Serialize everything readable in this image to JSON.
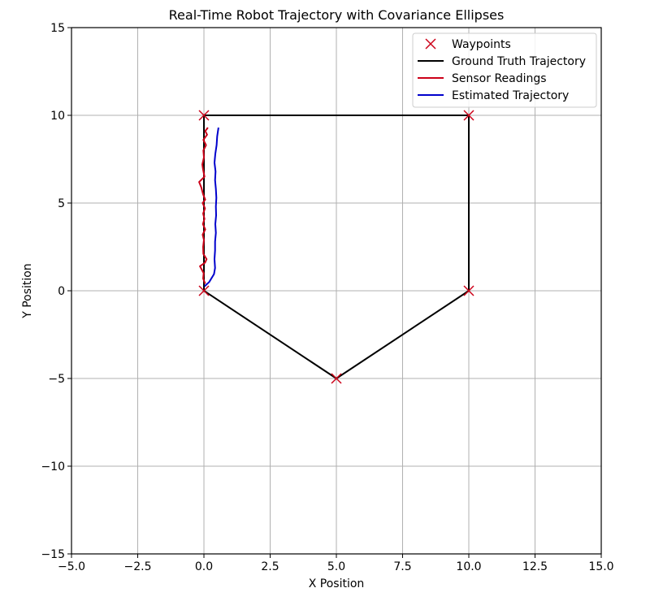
{
  "chart_data": {
    "type": "line",
    "title": "Real-Time Robot Trajectory with Covariance Ellipses",
    "xlabel": "X Position",
    "ylabel": "Y Position",
    "xlim": [
      -5.0,
      15.0
    ],
    "ylim": [
      -15,
      15
    ],
    "xticks": [
      -5.0,
      -2.5,
      0.0,
      2.5,
      5.0,
      7.5,
      10.0,
      12.5,
      15.0
    ],
    "xtick_labels": [
      "−5.0",
      "−2.5",
      "0.0",
      "2.5",
      "5.0",
      "7.5",
      "10.0",
      "12.5",
      "15.0"
    ],
    "yticks": [
      -15,
      -10,
      -5,
      0,
      5,
      10,
      15
    ],
    "ytick_labels": [
      "−15",
      "−10",
      "−5",
      "0",
      "5",
      "10",
      "15"
    ],
    "grid": true,
    "legend_position": "top-right",
    "series": [
      {
        "name": "Waypoints",
        "kind": "markers",
        "marker": "x",
        "color": "#cc0018",
        "points": [
          [
            0,
            0
          ],
          [
            0,
            10
          ],
          [
            10,
            10
          ],
          [
            10,
            0
          ],
          [
            5,
            -5
          ]
        ]
      },
      {
        "name": "Ground Truth Trajectory",
        "kind": "line",
        "color": "#000000",
        "points": [
          [
            0,
            0
          ],
          [
            0,
            10
          ],
          [
            10,
            10
          ],
          [
            10,
            0
          ],
          [
            5,
            -5
          ],
          [
            0,
            0
          ]
        ]
      },
      {
        "name": "Sensor Readings",
        "kind": "line",
        "color": "#cc0018",
        "points": [
          [
            0.05,
            0.4
          ],
          [
            -0.03,
            0.7
          ],
          [
            -0.01,
            1.0
          ],
          [
            -0.15,
            1.4
          ],
          [
            0.04,
            1.6
          ],
          [
            0.1,
            1.8
          ],
          [
            -0.02,
            2.1
          ],
          [
            -0.03,
            2.5
          ],
          [
            0.0,
            2.9
          ],
          [
            -0.05,
            3.2
          ],
          [
            0.05,
            3.5
          ],
          [
            -0.04,
            3.8
          ],
          [
            0.02,
            4.1
          ],
          [
            -0.03,
            4.4
          ],
          [
            0.04,
            4.7
          ],
          [
            -0.05,
            5.0
          ],
          [
            0.05,
            5.2
          ],
          [
            -0.03,
            5.5
          ],
          [
            -0.1,
            5.9
          ],
          [
            -0.18,
            6.2
          ],
          [
            0.02,
            6.5
          ],
          [
            -0.03,
            6.9
          ],
          [
            -0.06,
            7.2
          ],
          [
            0.0,
            7.6
          ],
          [
            -0.02,
            8.0
          ],
          [
            0.08,
            8.3
          ],
          [
            -0.02,
            8.6
          ],
          [
            0.12,
            8.9
          ],
          [
            0.05,
            9.1
          ],
          [
            0.15,
            9.3
          ]
        ]
      },
      {
        "name": "Estimated Trajectory",
        "kind": "line",
        "color": "#0000cc",
        "points": [
          [
            0.02,
            0.25
          ],
          [
            0.2,
            0.5
          ],
          [
            0.38,
            0.95
          ],
          [
            0.42,
            1.3
          ],
          [
            0.4,
            1.8
          ],
          [
            0.42,
            2.3
          ],
          [
            0.42,
            2.8
          ],
          [
            0.45,
            3.3
          ],
          [
            0.43,
            3.8
          ],
          [
            0.46,
            4.3
          ],
          [
            0.45,
            4.8
          ],
          [
            0.47,
            5.3
          ],
          [
            0.45,
            5.8
          ],
          [
            0.42,
            6.3
          ],
          [
            0.44,
            6.8
          ],
          [
            0.4,
            7.3
          ],
          [
            0.43,
            7.8
          ],
          [
            0.48,
            8.3
          ],
          [
            0.5,
            8.8
          ],
          [
            0.55,
            9.3
          ]
        ]
      }
    ]
  }
}
